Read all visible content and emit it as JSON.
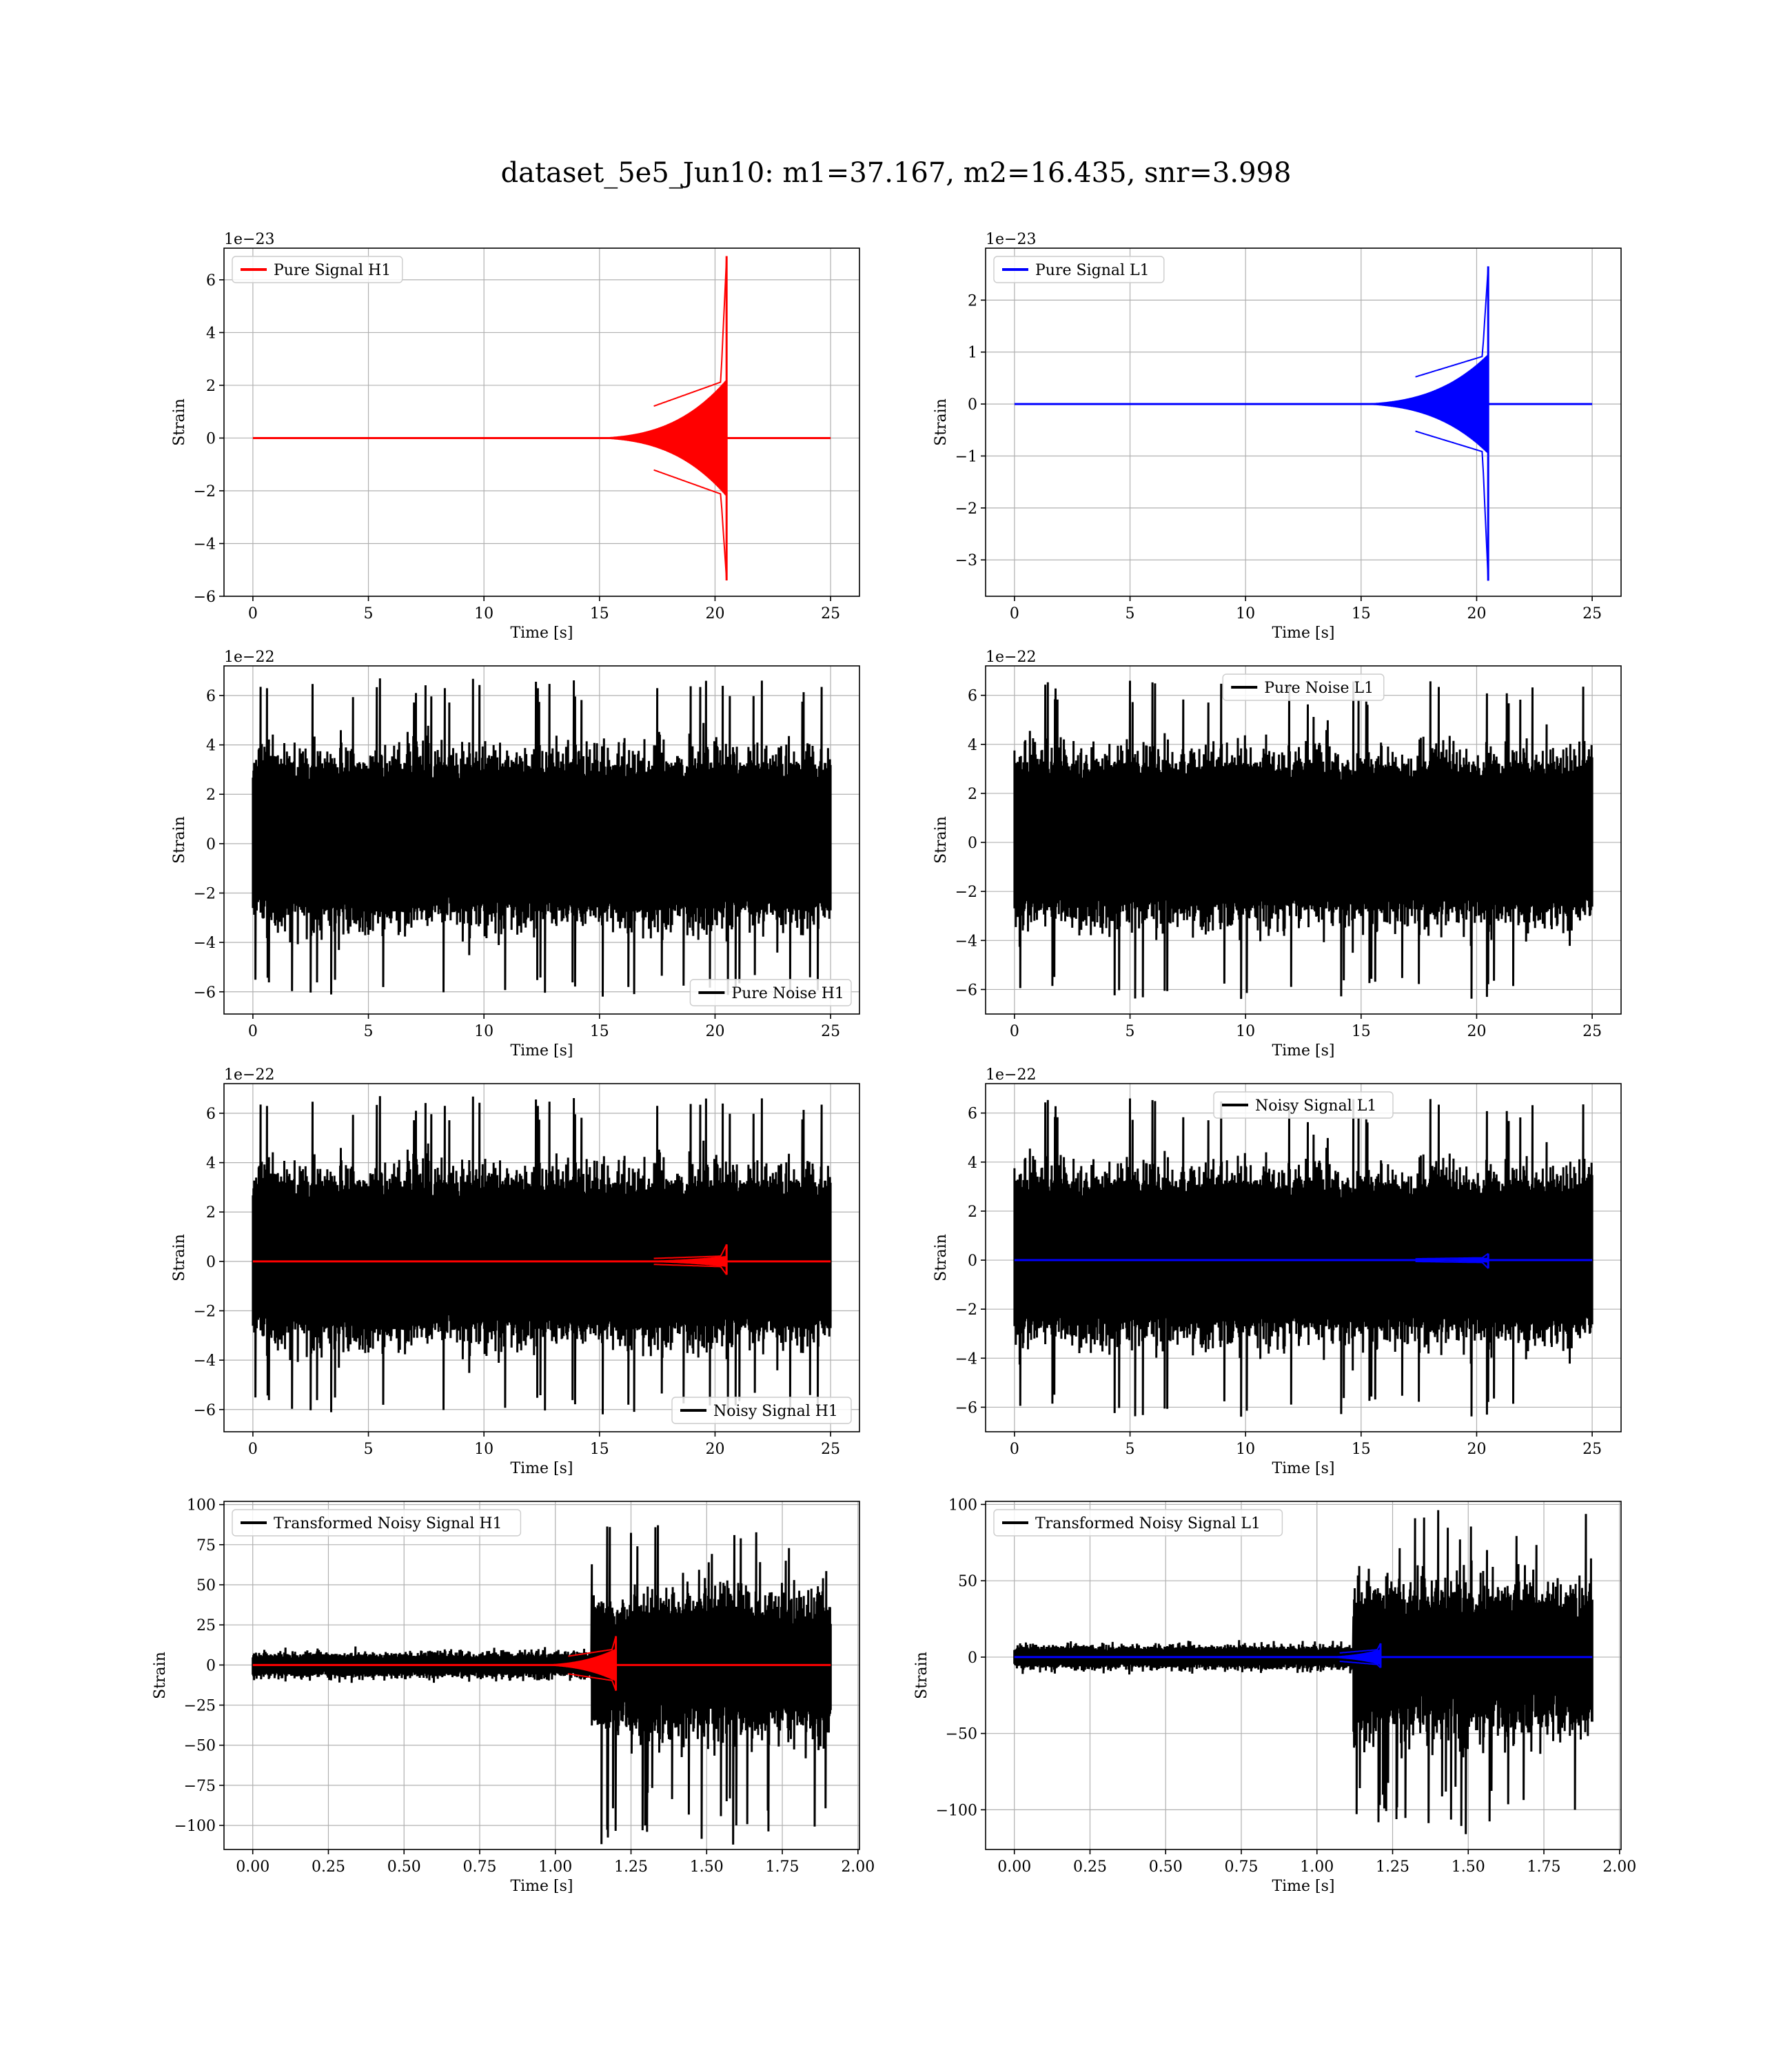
{
  "figure": {
    "title": "dataset_5e5_Jun10: m1=37.167, m2=16.435, snr=3.998"
  },
  "colors": {
    "h1_signal": "#ff0000",
    "l1_signal": "#0000ff",
    "noise": "#000000",
    "grid": "#b0b0b0"
  },
  "chart_data": [
    {
      "type": "line",
      "title": "",
      "detector": "H1",
      "xlabel": "Time [s]",
      "ylabel": "Strain",
      "offset_text": "1e−23",
      "xlim": [
        -1.25,
        26.25
      ],
      "ylim": [
        -6,
        7.2
      ],
      "xticks": [
        0,
        5,
        10,
        15,
        20,
        25
      ],
      "xtick_labels": [
        "0",
        "5",
        "10",
        "15",
        "20",
        "25"
      ],
      "yticks": [
        -6,
        -4,
        -2,
        0,
        2,
        4,
        6
      ],
      "ytick_labels": [
        "−6",
        "−4",
        "−2",
        "0",
        "2",
        "4",
        "6"
      ],
      "legend": {
        "position": "upper left",
        "entries": [
          "Pure Signal H1"
        ]
      },
      "grid": true,
      "series": [
        {
          "name": "Pure Signal H1",
          "color": "#ff0000",
          "kind": "chirp",
          "t_start": 0,
          "t_merger": 20.5,
          "t_end": 25,
          "peak_pos": 6.9,
          "peak_neg": -5.4,
          "plateau": 2.2
        }
      ]
    },
    {
      "type": "line",
      "title": "",
      "detector": "L1",
      "xlabel": "Time [s]",
      "ylabel": "Strain",
      "offset_text": "1e−23",
      "xlim": [
        -1.25,
        26.25
      ],
      "ylim": [
        -3.7,
        3.0
      ],
      "xticks": [
        0,
        5,
        10,
        15,
        20,
        25
      ],
      "xtick_labels": [
        "0",
        "5",
        "10",
        "15",
        "20",
        "25"
      ],
      "yticks": [
        -3,
        -2,
        -1,
        0,
        1,
        2
      ],
      "ytick_labels": [
        "−3",
        "−2",
        "−1",
        "0",
        "1",
        "2"
      ],
      "legend": {
        "position": "upper left",
        "entries": [
          "Pure Signal L1"
        ]
      },
      "grid": true,
      "series": [
        {
          "name": "Pure Signal L1",
          "color": "#0000ff",
          "kind": "chirp",
          "t_start": 0,
          "t_merger": 20.5,
          "t_end": 25,
          "peak_pos": 2.65,
          "peak_neg": -3.4,
          "plateau": 0.95
        }
      ]
    },
    {
      "type": "line",
      "title": "",
      "detector": "H1",
      "xlabel": "Time [s]",
      "ylabel": "Strain",
      "offset_text": "1e−22",
      "xlim": [
        -1.25,
        26.25
      ],
      "ylim": [
        -6.9,
        7.2
      ],
      "xticks": [
        0,
        5,
        10,
        15,
        20,
        25
      ],
      "xtick_labels": [
        "0",
        "5",
        "10",
        "15",
        "20",
        "25"
      ],
      "yticks": [
        -6,
        -4,
        -2,
        0,
        2,
        4,
        6
      ],
      "ytick_labels": [
        "−6",
        "−4",
        "−2",
        "0",
        "2",
        "4",
        "6"
      ],
      "legend": {
        "position": "lower right",
        "entries": [
          "Pure Noise H1"
        ]
      },
      "grid": true,
      "series": [
        {
          "name": "Pure Noise H1",
          "color": "#000000",
          "kind": "noise",
          "t_start": 0,
          "t_end": 25,
          "band": 3.3,
          "max": 6.7,
          "min": -6.2,
          "seed": 11
        }
      ]
    },
    {
      "type": "line",
      "title": "",
      "detector": "L1",
      "xlabel": "Time [s]",
      "ylabel": "Strain",
      "offset_text": "1e−22",
      "xlim": [
        -1.25,
        26.25
      ],
      "ylim": [
        -7.0,
        7.2
      ],
      "xticks": [
        0,
        5,
        10,
        15,
        20,
        25
      ],
      "xtick_labels": [
        "0",
        "5",
        "10",
        "15",
        "20",
        "25"
      ],
      "yticks": [
        -6,
        -4,
        -2,
        0,
        2,
        4,
        6
      ],
      "ytick_labels": [
        "−6",
        "−4",
        "−2",
        "0",
        "2",
        "4",
        "6"
      ],
      "legend": {
        "position": "upper center",
        "entries": [
          "Pure Noise L1"
        ]
      },
      "grid": true,
      "series": [
        {
          "name": "Pure Noise L1",
          "color": "#000000",
          "kind": "noise",
          "t_start": 0,
          "t_end": 25,
          "band": 3.3,
          "max": 6.6,
          "min": -6.4,
          "seed": 29
        }
      ]
    },
    {
      "type": "line",
      "title": "",
      "detector": "H1",
      "xlabel": "Time [s]",
      "ylabel": "Strain",
      "offset_text": "1e−22",
      "xlim": [
        -1.25,
        26.25
      ],
      "ylim": [
        -6.9,
        7.2
      ],
      "xticks": [
        0,
        5,
        10,
        15,
        20,
        25
      ],
      "xtick_labels": [
        "0",
        "5",
        "10",
        "15",
        "20",
        "25"
      ],
      "yticks": [
        -6,
        -4,
        -2,
        0,
        2,
        4,
        6
      ],
      "ytick_labels": [
        "−6",
        "−4",
        "−2",
        "0",
        "2",
        "4",
        "6"
      ],
      "legend": {
        "position": "lower right",
        "entries": [
          "Noisy Signal H1"
        ]
      },
      "grid": true,
      "series": [
        {
          "name": "Noisy Signal H1",
          "color": "#000000",
          "kind": "noise",
          "t_start": 0,
          "t_end": 25,
          "band": 3.3,
          "max": 6.7,
          "min": -6.2,
          "seed": 11
        },
        {
          "color": "#ff0000",
          "kind": "chirp",
          "t_start": 0,
          "t_merger": 20.5,
          "t_end": 25,
          "peak_pos": 0.69,
          "peak_neg": -0.54,
          "plateau": 0.22
        }
      ]
    },
    {
      "type": "line",
      "title": "",
      "detector": "L1",
      "xlabel": "Time [s]",
      "ylabel": "Strain",
      "offset_text": "1e−22",
      "xlim": [
        -1.25,
        26.25
      ],
      "ylim": [
        -7.0,
        7.2
      ],
      "xticks": [
        0,
        5,
        10,
        15,
        20,
        25
      ],
      "xtick_labels": [
        "0",
        "5",
        "10",
        "15",
        "20",
        "25"
      ],
      "yticks": [
        -6,
        -4,
        -2,
        0,
        2,
        4,
        6
      ],
      "ytick_labels": [
        "−6",
        "−4",
        "−2",
        "0",
        "2",
        "4",
        "6"
      ],
      "legend": {
        "position": "upper center",
        "entries": [
          "Noisy Signal L1"
        ]
      },
      "grid": true,
      "series": [
        {
          "name": "Noisy Signal L1",
          "color": "#000000",
          "kind": "noise",
          "t_start": 0,
          "t_end": 25,
          "band": 3.3,
          "max": 6.6,
          "min": -6.4,
          "seed": 29
        },
        {
          "color": "#0000ff",
          "kind": "chirp",
          "t_start": 0,
          "t_merger": 20.5,
          "t_end": 25,
          "peak_pos": 0.27,
          "peak_neg": -0.34,
          "plateau": 0.1
        }
      ]
    },
    {
      "type": "line",
      "title": "",
      "detector": "H1",
      "xlabel": "Time [s]",
      "ylabel": "Strain",
      "offset_text": "",
      "xlim": [
        -0.095,
        2.005
      ],
      "ylim": [
        -115,
        102
      ],
      "xticks": [
        0,
        0.25,
        0.5,
        0.75,
        1.0,
        1.25,
        1.5,
        1.75,
        2.0
      ],
      "xtick_labels": [
        "0.00",
        "0.25",
        "0.50",
        "0.75",
        "1.00",
        "1.25",
        "1.50",
        "1.75",
        "2.00"
      ],
      "yticks": [
        -100,
        -75,
        -50,
        -25,
        0,
        25,
        50,
        75,
        100
      ],
      "ytick_labels": [
        "−100",
        "−75",
        "−50",
        "−25",
        "0",
        "25",
        "50",
        "75",
        "100"
      ],
      "legend": {
        "position": "upper left",
        "entries": [
          "Transformed Noisy Signal H1"
        ]
      },
      "grid": true,
      "series": [
        {
          "name": "Transformed Noisy Signal H1",
          "color": "#000000",
          "kind": "transformed",
          "t_start": 0,
          "t_jump": 1.12,
          "t_end": 1.91,
          "band_low": 7,
          "band_high": 38,
          "max": 88,
          "min": -112,
          "seed": 47
        },
        {
          "color": "#ff0000",
          "kind": "chirp",
          "t_start": 0,
          "t_merger": 1.2,
          "t_end": 1.91,
          "peak_pos": 18,
          "peak_neg": -16,
          "plateau": 10,
          "span": 0.35
        }
      ]
    },
    {
      "type": "line",
      "title": "",
      "detector": "L1",
      "xlabel": "Time [s]",
      "ylabel": "Strain",
      "offset_text": "",
      "xlim": [
        -0.095,
        2.005
      ],
      "ylim": [
        -126,
        102
      ],
      "xticks": [
        0,
        0.25,
        0.5,
        0.75,
        1.0,
        1.25,
        1.5,
        1.75,
        2.0
      ],
      "xtick_labels": [
        "0.00",
        "0.25",
        "0.50",
        "0.75",
        "1.00",
        "1.25",
        "1.50",
        "1.75",
        "2.00"
      ],
      "yticks": [
        -100,
        -50,
        0,
        50,
        100
      ],
      "ytick_labels": [
        "−100",
        "−50",
        "0",
        "50",
        "100"
      ],
      "legend": {
        "position": "upper left",
        "entries": [
          "Transformed Noisy Signal L1"
        ]
      },
      "grid": true,
      "series": [
        {
          "name": "Transformed Noisy Signal L1",
          "color": "#000000",
          "kind": "transformed",
          "t_start": 0,
          "t_jump": 1.12,
          "t_end": 1.91,
          "band_low": 7,
          "band_high": 42,
          "max": 98,
          "min": -117,
          "seed": 53
        },
        {
          "color": "#0000ff",
          "kind": "chirp",
          "t_start": 0,
          "t_merger": 1.21,
          "t_end": 1.91,
          "peak_pos": 9,
          "peak_neg": -7,
          "plateau": 5,
          "span": 0.3
        }
      ]
    }
  ]
}
